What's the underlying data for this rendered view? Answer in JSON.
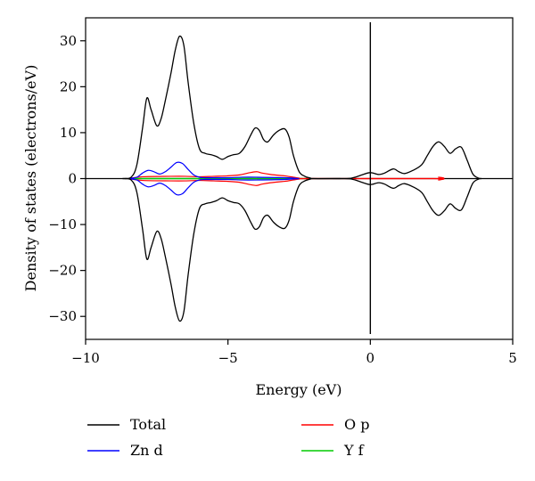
{
  "chart_data": {
    "type": "line",
    "title": "",
    "xlabel": "Energy (eV)",
    "ylabel": "Density of states (electrons/eV)",
    "xlim": [
      -10,
      5
    ],
    "ylim": [
      -35,
      35
    ],
    "xticks": [
      -10,
      -5,
      0,
      5
    ],
    "xtick_labels": [
      "−10",
      "−5",
      "0",
      "5"
    ],
    "yticks": [
      -30,
      -20,
      -10,
      0,
      10,
      20,
      30
    ],
    "ytick_labels": [
      "−30",
      "−20",
      "−10",
      "0",
      "10",
      "20",
      "30"
    ],
    "grid": false,
    "legend_position": "below",
    "vertical_reference_line_x": 0,
    "series": [
      {
        "name": "Total",
        "color": "#000000",
        "mirrored": true,
        "x": [
          -8.7,
          -8.4,
          -8.2,
          -8.0,
          -7.85,
          -7.7,
          -7.5,
          -7.35,
          -7.2,
          -7.0,
          -6.85,
          -6.7,
          -6.55,
          -6.4,
          -6.2,
          -6.0,
          -5.8,
          -5.6,
          -5.4,
          -5.2,
          -5.0,
          -4.8,
          -4.6,
          -4.4,
          -4.2,
          -4.05,
          -3.9,
          -3.75,
          -3.6,
          -3.4,
          -3.2,
          -3.0,
          -2.85,
          -2.7,
          -2.5,
          -2.3,
          -2.1,
          -2.0,
          -0.9,
          -0.6,
          -0.3,
          -0.1,
          0.0,
          0.1,
          0.3,
          0.5,
          0.8,
          1.0,
          1.2,
          1.5,
          1.8,
          2.0,
          2.2,
          2.4,
          2.6,
          2.8,
          3.0,
          3.2,
          3.4,
          3.6,
          3.8,
          3.9
        ],
        "y": [
          0,
          0.3,
          3,
          11,
          17.5,
          15,
          11.5,
          13,
          17,
          23,
          28,
          31,
          29,
          21,
          12,
          6.5,
          5.5,
          5.2,
          4.8,
          4.2,
          4.8,
          5.2,
          5.5,
          7,
          9.5,
          11,
          10.5,
          8.5,
          8,
          9.5,
          10.5,
          10.8,
          9,
          5,
          1.5,
          0.5,
          0.1,
          0,
          0,
          0.2,
          0.8,
          1.2,
          1.3,
          1.2,
          0.9,
          1.2,
          2.1,
          1.5,
          1.1,
          1.8,
          3.0,
          5.0,
          7.0,
          8.0,
          7.0,
          5.5,
          6.5,
          6.8,
          4.0,
          1.0,
          0.1,
          0
        ]
      },
      {
        "name": "Zn d",
        "color": "#0000ff",
        "mirrored": true,
        "x": [
          -8.5,
          -8.2,
          -8.0,
          -7.8,
          -7.6,
          -7.4,
          -7.2,
          -7.0,
          -6.8,
          -6.6,
          -6.4,
          -6.2,
          -6.0,
          -5.8,
          -5.0,
          -4.5,
          -4.0,
          -3.0,
          -2.5
        ],
        "y": [
          0,
          0.3,
          1.2,
          1.8,
          1.5,
          1.0,
          1.5,
          2.5,
          3.5,
          3.3,
          2.0,
          0.8,
          0.3,
          0.2,
          0.2,
          0.3,
          0.3,
          0.2,
          0
        ]
      },
      {
        "name": "O p",
        "color": "#ff0000",
        "mirrored": true,
        "x": [
          -8.5,
          -8.0,
          -7.0,
          -6.5,
          -6.0,
          -5.5,
          -5.0,
          -4.6,
          -4.3,
          -4.0,
          -3.8,
          -3.5,
          -3.2,
          -3.0,
          -2.7,
          -2.5,
          -2.2,
          2.2,
          2.4,
          2.6
        ],
        "y": [
          0,
          0.4,
          0.5,
          0.5,
          0.4,
          0.5,
          0.6,
          0.8,
          1.2,
          1.5,
          1.2,
          0.9,
          0.7,
          0.6,
          0.3,
          0.1,
          0,
          0,
          0.3,
          0
        ]
      },
      {
        "name": "Y f",
        "color": "#00cc00",
        "mirrored": true,
        "x": [
          -8.5,
          -2.2
        ],
        "y": [
          0,
          0
        ]
      }
    ],
    "legend": [
      {
        "label": "Total",
        "color": "#000000"
      },
      {
        "label": "Zn d",
        "color": "#0000ff"
      },
      {
        "label": "O p",
        "color": "#ff0000"
      },
      {
        "label": "Y f",
        "color": "#00cc00"
      }
    ]
  }
}
